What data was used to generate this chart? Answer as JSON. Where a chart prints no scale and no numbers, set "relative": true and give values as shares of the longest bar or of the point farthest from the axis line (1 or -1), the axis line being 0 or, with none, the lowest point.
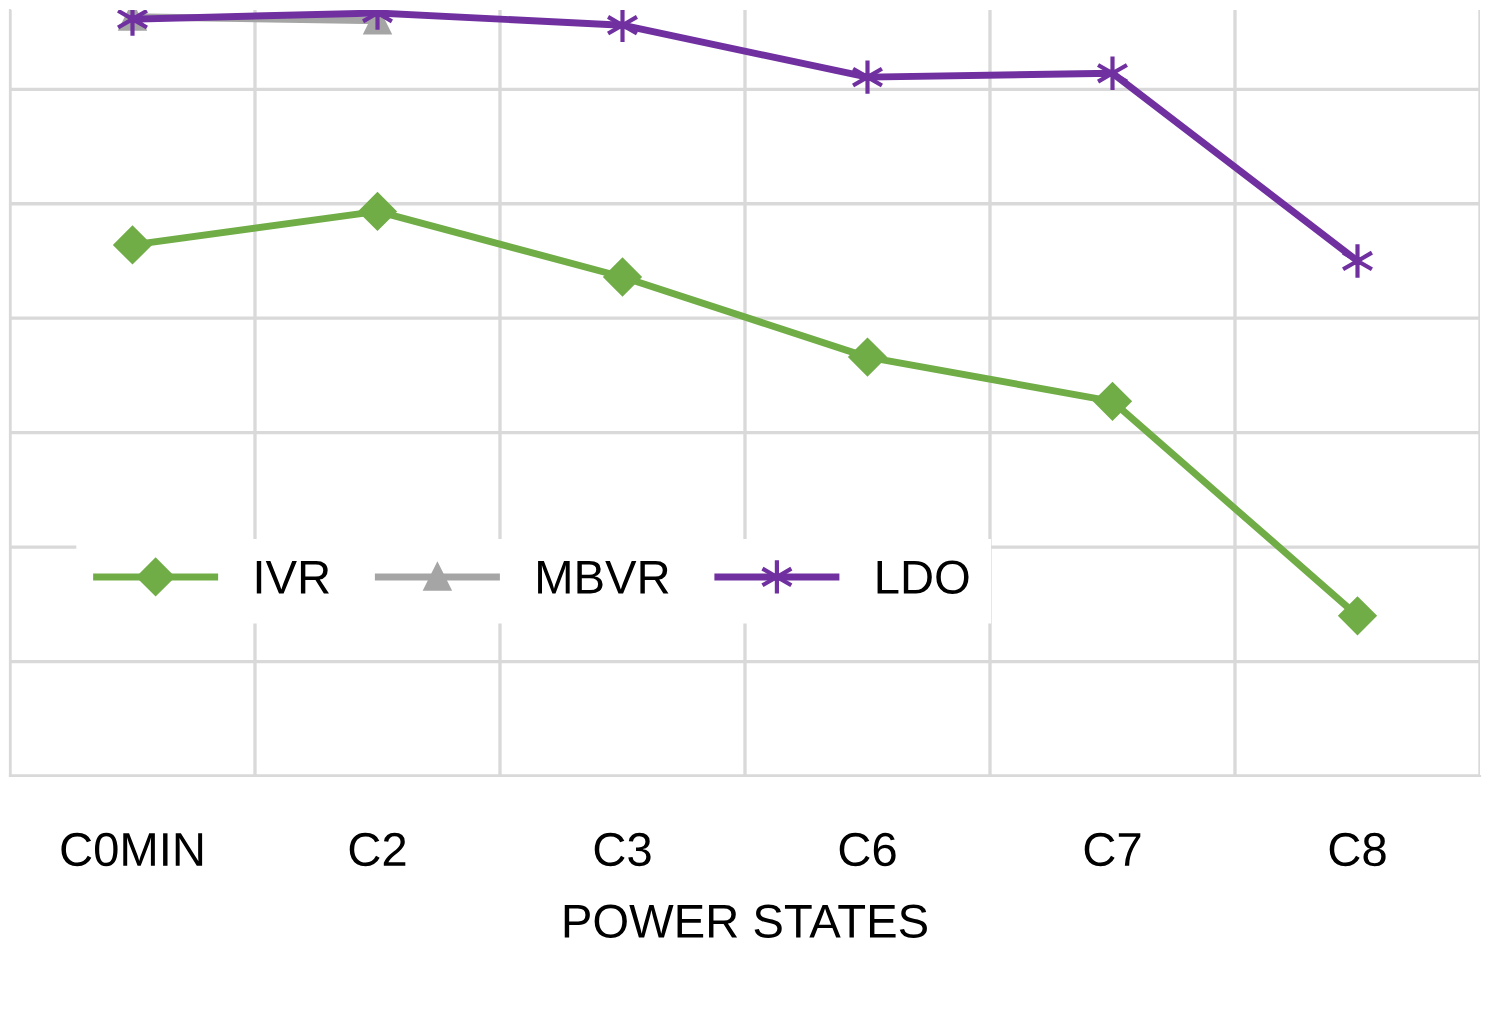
{
  "chart_data": {
    "type": "line",
    "xlabel": "POWER STATES",
    "relative": true,
    "categories": [
      "C0MIN",
      "C2",
      "C3",
      "C6",
      "C7",
      "C8"
    ],
    "series": [
      {
        "name": "IVR",
        "color": "#70ad47",
        "marker": "diamond",
        "values": [
          0.696,
          0.74,
          0.654,
          0.549,
          0.491,
          0.21
        ]
      },
      {
        "name": "MBVR",
        "color": "#a5a5a5",
        "marker": "triangle",
        "values": [
          0.995,
          0.99,
          null,
          null,
          null,
          null
        ]
      },
      {
        "name": "LDO",
        "color": "#7030a0",
        "marker": "cross",
        "values": [
          0.992,
          1.0,
          0.984,
          0.916,
          0.921,
          0.675
        ]
      }
    ],
    "grid": true,
    "legend": "bottom left",
    "line_style": "solid"
  }
}
